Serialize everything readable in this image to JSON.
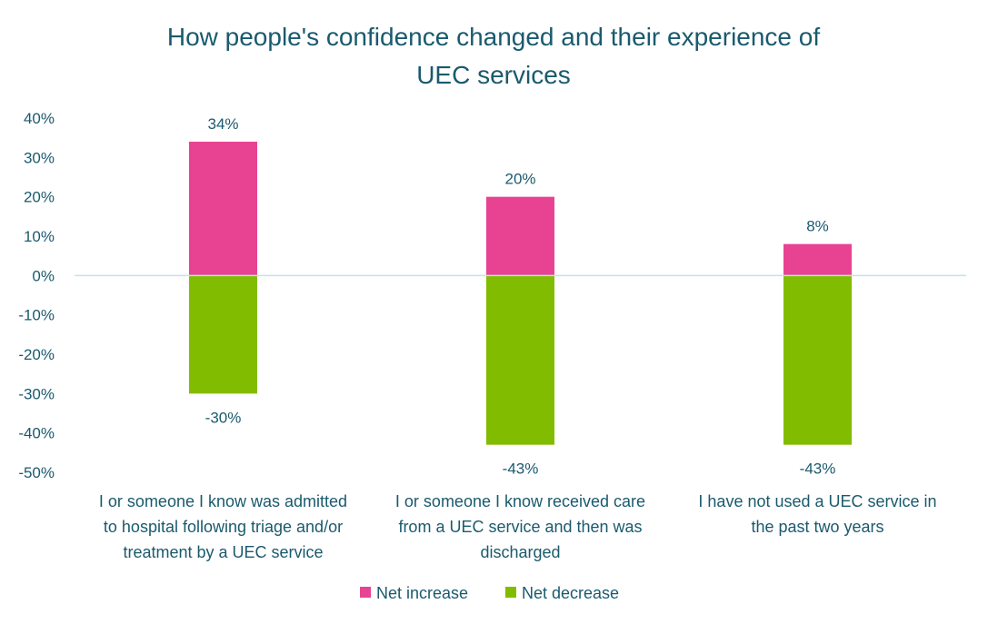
{
  "chart_data": {
    "type": "bar",
    "stacked": true,
    "title": "How people's confidence changed and their experience of UEC services",
    "title_lines": [
      "How people's confidence changed and their experience of",
      "UEC services"
    ],
    "categories": [
      "I or someone I know was admitted to hospital following triage and/or treatment by a UEC service",
      "I or someone I know received care from a UEC service and then was discharged",
      "I have not used a UEC service in the past two years"
    ],
    "category_lines": [
      [
        "I or someone I know was admitted",
        "to hospital following triage and/or",
        "treatment by a UEC service"
      ],
      [
        "I or someone I know received care",
        "from a UEC service and then was",
        "discharged"
      ],
      [
        "I have not used a UEC service in",
        "the past two years"
      ]
    ],
    "series": [
      {
        "name": "Net increase",
        "color": "#e84393",
        "values": [
          34,
          20,
          8
        ],
        "labels": [
          "34%",
          "20%",
          "8%"
        ]
      },
      {
        "name": "Net decrease",
        "color": "#82bc00",
        "values": [
          -30,
          -43,
          -43
        ],
        "labels": [
          "-30%",
          "-43%",
          "-43%"
        ]
      }
    ],
    "ylim": [
      -50,
      40
    ],
    "yticks": [
      40,
      30,
      20,
      10,
      0,
      -10,
      -20,
      -30,
      -40,
      -50
    ],
    "ytick_labels": [
      "40%",
      "30%",
      "20%",
      "10%",
      "0%",
      "-10%",
      "-20%",
      "-30%",
      "-40%",
      "-50%"
    ],
    "zero_line_color": "#bfe3f2",
    "grid": false,
    "legend_position": "bottom"
  }
}
